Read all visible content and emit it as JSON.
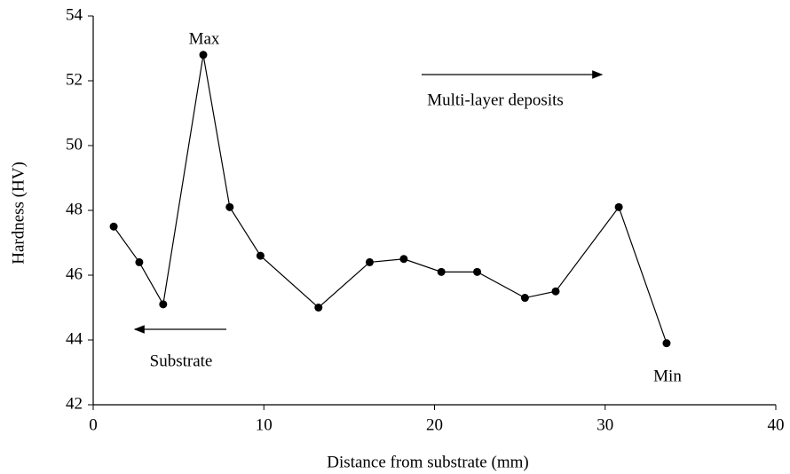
{
  "chart_data": {
    "type": "line",
    "x_label": "Distance from substrate (mm)",
    "y_label": "Hardness (HV)",
    "x": [
      1.2,
      2.7,
      4.1,
      6.45,
      8.0,
      9.8,
      13.2,
      16.2,
      18.2,
      20.4,
      22.5,
      25.3,
      27.1,
      30.8,
      33.6
    ],
    "series": [
      {
        "name": "Hardness",
        "color": "#000000",
        "values": [
          47.5,
          46.4,
          45.1,
          52.8,
          48.1,
          46.6,
          45.0,
          46.4,
          46.5,
          46.1,
          46.1,
          45.3,
          45.5,
          48.1,
          43.9
        ]
      }
    ],
    "xlim": [
      0,
      40
    ],
    "xticks": [
      0,
      10,
      20,
      30,
      40
    ],
    "ylim": [
      42,
      54
    ],
    "yticks": [
      42,
      44,
      46,
      48,
      50,
      52,
      54
    ],
    "annotations": [
      "Max",
      "Multi-layer deposits",
      "Substrate",
      "Min"
    ],
    "grid": false
  }
}
